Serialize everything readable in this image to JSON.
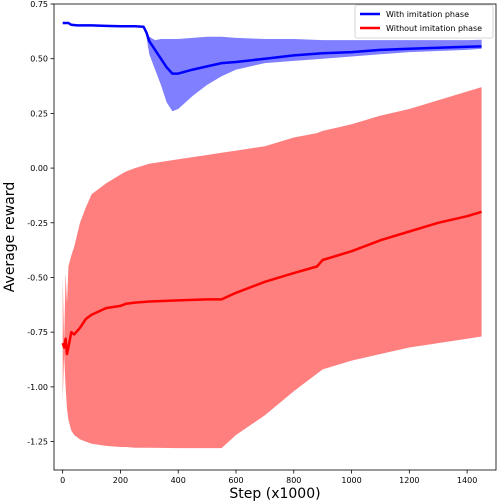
{
  "chart_data": {
    "type": "line",
    "title": "",
    "xlabel": "Step (x1000)",
    "ylabel": "Average reward",
    "xlim": [
      -30,
      1500
    ],
    "ylim": [
      -1.38,
      0.75
    ],
    "xticks": [
      0,
      200,
      400,
      600,
      800,
      1000,
      1200,
      1400
    ],
    "yticks": [
      -1.25,
      -1.0,
      -0.75,
      -0.5,
      -0.25,
      0.0,
      0.25,
      0.5,
      0.75
    ],
    "ytick_labels": [
      "-1.25",
      "-1.00",
      "-0.75",
      "-0.50",
      "-0.25",
      "0.00",
      "0.25",
      "0.50",
      "0.75"
    ],
    "grid": false,
    "legend_position": "top-right",
    "series": [
      {
        "name": "With imitation phase",
        "color": "#0000ff",
        "band_color": "#0000ff",
        "x": [
          0,
          20,
          30,
          50,
          100,
          150,
          200,
          250,
          280,
          290,
          300,
          320,
          340,
          360,
          380,
          400,
          450,
          500,
          550,
          600,
          700,
          800,
          900,
          1000,
          1100,
          1200,
          1300,
          1400,
          1450
        ],
        "y": [
          0.663,
          0.663,
          0.655,
          0.652,
          0.652,
          0.65,
          0.648,
          0.648,
          0.646,
          0.62,
          0.58,
          0.54,
          0.5,
          0.46,
          0.432,
          0.432,
          0.45,
          0.465,
          0.48,
          0.485,
          0.5,
          0.515,
          0.525,
          0.53,
          0.54,
          0.545,
          0.55,
          0.555,
          0.556
        ],
        "upper": [
          0.663,
          0.663,
          0.655,
          0.652,
          0.652,
          0.65,
          0.648,
          0.648,
          0.646,
          0.63,
          0.6,
          0.585,
          0.59,
          0.59,
          0.59,
          0.59,
          0.595,
          0.6,
          0.6,
          0.595,
          0.59,
          0.59,
          0.585,
          0.585,
          0.585,
          0.585,
          0.585,
          0.585,
          0.587
        ],
        "lower": [
          0.663,
          0.663,
          0.655,
          0.652,
          0.652,
          0.65,
          0.648,
          0.648,
          0.646,
          0.6,
          0.52,
          0.45,
          0.38,
          0.3,
          0.26,
          0.27,
          0.33,
          0.38,
          0.42,
          0.45,
          0.48,
          0.49,
          0.5,
          0.51,
          0.52,
          0.53,
          0.535,
          0.54,
          0.545
        ]
      },
      {
        "name": "Without imitation phase",
        "color": "#ff0000",
        "band_color": "#ff0000",
        "x": [
          0,
          5,
          10,
          15,
          20,
          30,
          40,
          60,
          80,
          100,
          150,
          200,
          220,
          250,
          300,
          400,
          500,
          550,
          600,
          700,
          800,
          880,
          900,
          1000,
          1100,
          1200,
          1300,
          1400,
          1450
        ],
        "y": [
          -0.8,
          -0.82,
          -0.78,
          -0.85,
          -0.82,
          -0.75,
          -0.76,
          -0.73,
          -0.69,
          -0.67,
          -0.64,
          -0.63,
          -0.62,
          -0.615,
          -0.61,
          -0.605,
          -0.6,
          -0.6,
          -0.57,
          -0.52,
          -0.48,
          -0.45,
          -0.42,
          -0.38,
          -0.33,
          -0.29,
          -0.25,
          -0.22,
          -0.2
        ],
        "upper": [
          -0.5,
          -0.8,
          -0.48,
          -0.62,
          -0.45,
          -0.4,
          -0.36,
          -0.25,
          -0.18,
          -0.12,
          -0.07,
          -0.03,
          -0.015,
          0.0,
          0.02,
          0.04,
          0.06,
          0.07,
          0.08,
          0.1,
          0.14,
          0.16,
          0.17,
          0.2,
          0.24,
          0.27,
          0.31,
          0.35,
          0.37
        ],
        "lower": [
          -1.06,
          -0.85,
          -1.0,
          -1.1,
          -1.15,
          -1.2,
          -1.22,
          -1.24,
          -1.25,
          -1.26,
          -1.27,
          -1.275,
          -1.275,
          -1.278,
          -1.278,
          -1.28,
          -1.28,
          -1.28,
          -1.22,
          -1.13,
          -1.02,
          -0.94,
          -0.92,
          -0.88,
          -0.85,
          -0.82,
          -0.8,
          -0.78,
          -0.77
        ]
      }
    ]
  }
}
